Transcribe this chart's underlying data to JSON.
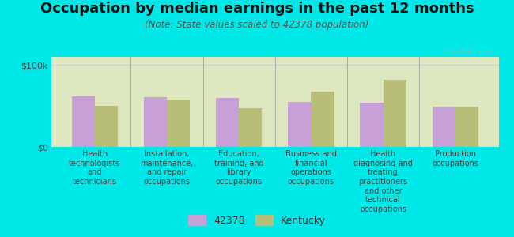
{
  "title": "Occupation by median earnings in the past 12 months",
  "subtitle": "(Note: State values scaled to 42378 population)",
  "background_color": "#00e8e8",
  "plot_bg_top_color": "#e8f0d0",
  "plot_bg_bottom_color": "#f0f8e0",
  "categories": [
    "Health\ntechnologists\nand\ntechnicians",
    "Installation,\nmaintenance,\nand repair\noccupations",
    "Education,\ntraining, and\nlibrary\noccupations",
    "Business and\nfinancial\noperations\noccupations",
    "Health\ndiagnosing and\ntreating\npractitioners\nand other\ntechnical\noccupations",
    "Production\noccupations"
  ],
  "values_42378": [
    62000,
    61000,
    60000,
    55000,
    54000,
    49000
  ],
  "values_kentucky": [
    50000,
    58000,
    47000,
    68000,
    82000,
    49000
  ],
  "color_42378": "#c8a0d8",
  "color_kentucky": "#b8be78",
  "bar_width": 0.32,
  "ylim": [
    0,
    110000
  ],
  "yticks": [
    0,
    100000
  ],
  "ytick_labels": [
    "$0",
    "$100k"
  ],
  "legend_labels": [
    "42378",
    "Kentucky"
  ],
  "ylabel_fontsize": 8,
  "title_fontsize": 13,
  "subtitle_fontsize": 8.5,
  "tick_label_fontsize": 7,
  "legend_fontsize": 9,
  "watermark": "City-Data.com"
}
